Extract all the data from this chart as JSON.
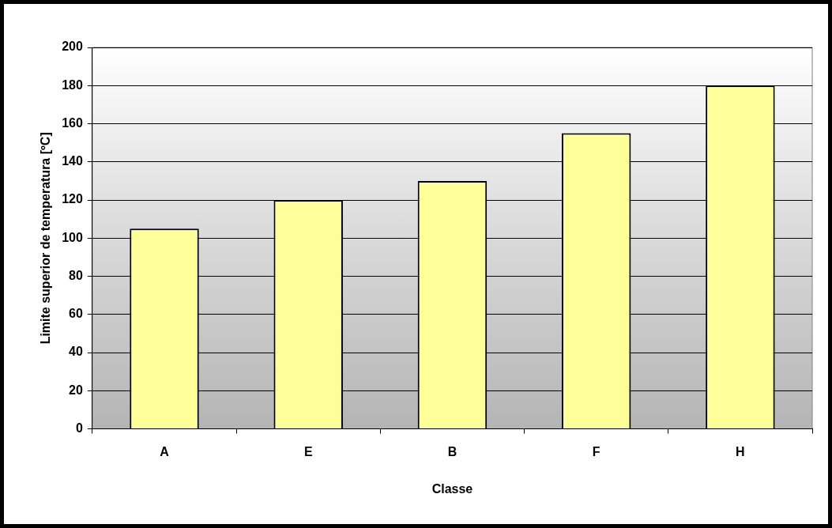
{
  "chart_data": {
    "type": "bar",
    "xlabel": "Classe",
    "ylabel": "Limite superior de temperatura [ºC]",
    "categories": [
      "A",
      "E",
      "B",
      "F",
      "H"
    ],
    "values": [
      105,
      120,
      130,
      155,
      180
    ],
    "color": "#ffff99",
    "ylim": [
      0,
      200
    ],
    "yticks": [
      0,
      20,
      40,
      60,
      80,
      100,
      120,
      140,
      160,
      180,
      200
    ],
    "grid": "y",
    "legend": false
  }
}
